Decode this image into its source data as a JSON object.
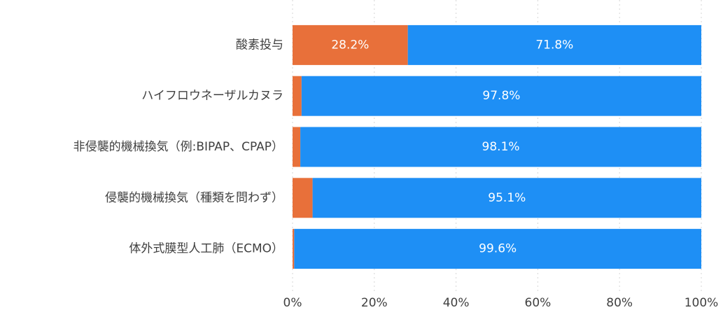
{
  "chart_data": {
    "type": "stacked-barh",
    "categories": [
      "酸素投与",
      "ハイフロウネーザルカヌラ",
      "非侵襲的機械換気（例:BIPAP、CPAP）",
      "侵襲的機械換気（種類を問わず）",
      "体外式膜型人工肺（ECMO）"
    ],
    "series": [
      {
        "color": "#e8703a",
        "values": [
          28.2,
          2.2,
          1.9,
          4.9,
          0.4
        ],
        "value_labels": [
          "28.2%",
          null,
          null,
          null,
          null
        ]
      },
      {
        "color": "#1e8ff5",
        "values": [
          71.8,
          97.8,
          98.1,
          95.1,
          99.6
        ],
        "value_labels": [
          "71.8%",
          "97.8%",
          "98.1%",
          "95.1%",
          "99.6%"
        ]
      }
    ],
    "xlim": [
      0,
      100
    ],
    "xticks": [
      {
        "value": 0,
        "label": "0%"
      },
      {
        "value": 20,
        "label": "20%"
      },
      {
        "value": 40,
        "label": "40%"
      },
      {
        "value": 60,
        "label": "60%"
      },
      {
        "value": 80,
        "label": "80%"
      },
      {
        "value": 100,
        "label": "100%"
      }
    ],
    "grid": true
  }
}
